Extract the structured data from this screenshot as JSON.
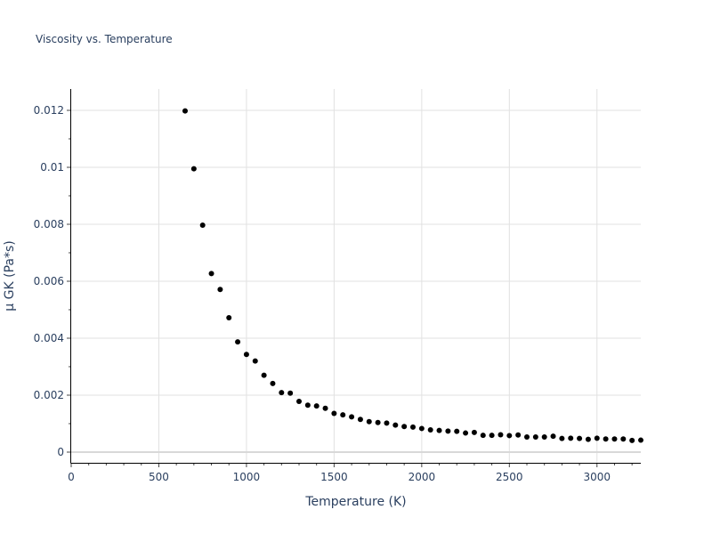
{
  "chart_data": {
    "type": "scatter",
    "title": "Viscosity vs. Temperature",
    "xlabel": "Temperature (K)",
    "ylabel": "μ GK (Pa*s)",
    "xlim": [
      0,
      3250
    ],
    "ylim": [
      -0.000375,
      0.01275
    ],
    "x_ticks": [
      0,
      500,
      1000,
      1500,
      2000,
      2500,
      3000
    ],
    "x_tick_labels": [
      "0",
      "500",
      "1000",
      "1500",
      "2000",
      "2500",
      "3000"
    ],
    "y_ticks": [
      0,
      0.002,
      0.004,
      0.006,
      0.008,
      0.01,
      0.012
    ],
    "y_tick_labels": [
      "0",
      "0.002",
      "0.004",
      "0.006",
      "0.008",
      "0.01",
      "0.012"
    ],
    "grid": true,
    "marker_color": "#000000",
    "x": [
      650,
      700,
      750,
      800,
      850,
      900,
      950,
      1000,
      1050,
      1100,
      1150,
      1200,
      1250,
      1300,
      1350,
      1400,
      1450,
      1500,
      1550,
      1600,
      1650,
      1700,
      1750,
      1800,
      1850,
      1900,
      1950,
      2000,
      2050,
      2100,
      2150,
      2200,
      2250,
      2300,
      2350,
      2400,
      2450,
      2500,
      2550,
      2600,
      2650,
      2700,
      2750,
      2800,
      2850,
      2900,
      2950,
      3000,
      3050,
      3100,
      3150,
      3200,
      3250
    ],
    "y": [
      0.01198,
      0.00995,
      0.00797,
      0.00627,
      0.00571,
      0.00472,
      0.00387,
      0.00343,
      0.0032,
      0.0027,
      0.00241,
      0.00209,
      0.00207,
      0.00178,
      0.00165,
      0.00162,
      0.00154,
      0.00136,
      0.00131,
      0.00124,
      0.00115,
      0.00107,
      0.00104,
      0.00102,
      0.00095,
      0.0009,
      0.00088,
      0.00083,
      0.00078,
      0.00076,
      0.00074,
      0.00073,
      0.00067,
      0.00069,
      0.00059,
      0.00059,
      0.00061,
      0.00058,
      0.0006,
      0.00053,
      0.00053,
      0.00053,
      0.00056,
      0.00048,
      0.00049,
      0.00048,
      0.00045,
      0.00049,
      0.00046,
      0.00046,
      0.00046,
      0.00041,
      0.00042
    ]
  }
}
